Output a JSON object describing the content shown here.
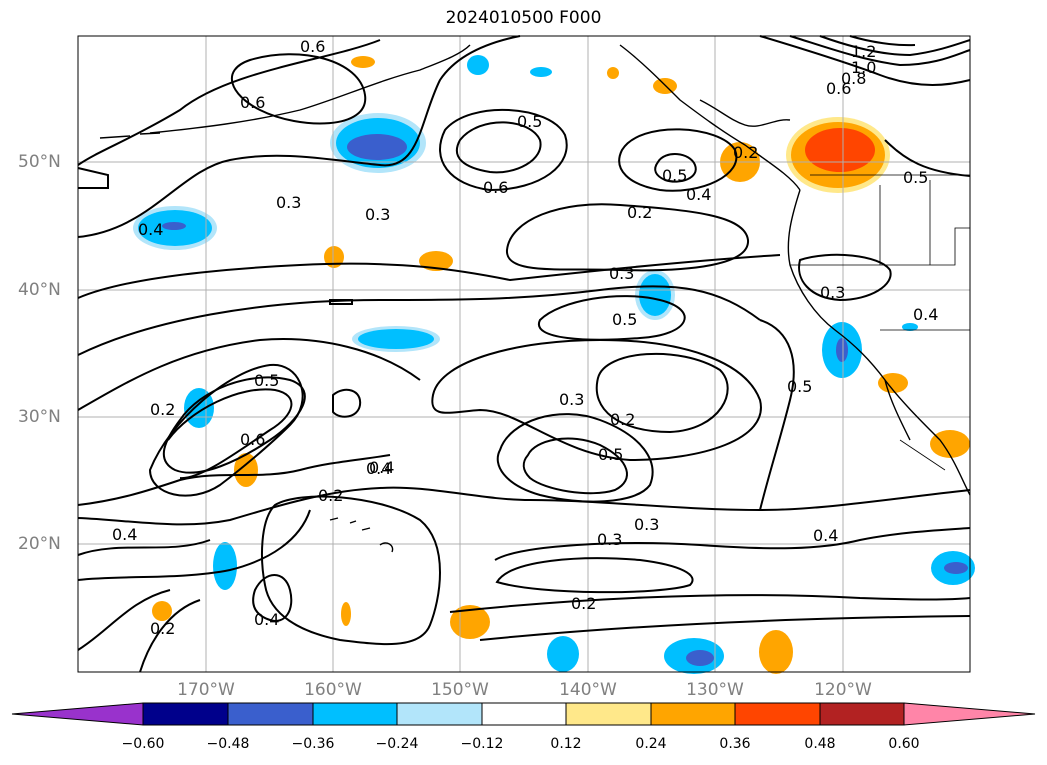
{
  "title": "2024010500 F000",
  "lat_labels": [
    "50°N",
    "40°N",
    "30°N",
    "20°N"
  ],
  "lon_labels": [
    "170°W",
    "160°W",
    "150°W",
    "140°W",
    "130°W",
    "120°W"
  ],
  "contour_labels": [
    "0.6",
    "0.3",
    "0.4",
    "0.6",
    "0.5",
    "0.6",
    "0.5",
    "0.4",
    "0.2",
    "1.2",
    "1.0",
    "0.8",
    "0.6",
    "0.5",
    "0.3",
    "0.5",
    "0.4",
    "0.3",
    "0.2",
    "0.5",
    "0.5",
    "0.2",
    "0.6",
    "0.4",
    "0.2",
    "0.3",
    "0.2",
    "0.5",
    "0.3",
    "0.4",
    "0.3",
    "0.2",
    "0.4",
    "0.2",
    "0.4",
    "0.4",
    "0.3"
  ],
  "colorbar": {
    "ticks": [
      "−0.60",
      "−0.48",
      "−0.36",
      "−0.24",
      "−0.12",
      "0.12",
      "0.24",
      "0.36",
      "0.48",
      "0.60"
    ],
    "colors": [
      "#9932cc",
      "#00008b",
      "#3a5fcd",
      "#00bfff",
      "#b2e5fa",
      "#ffffff",
      "#ffe88a",
      "#ffa500",
      "#ff4500",
      "#b22222",
      "#ff85a8"
    ]
  },
  "colors": {
    "coast": "#000000",
    "grid": "#b0b0b0",
    "neg_light": "#b2e5fa",
    "neg_mid": "#00bfff",
    "neg_strong": "#3a5fcd",
    "neg_xstrong": "#00008b",
    "pos_light": "#ffe88a",
    "pos_mid": "#ffa500",
    "pos_strong": "#ff4500"
  }
}
